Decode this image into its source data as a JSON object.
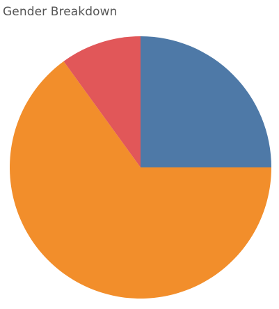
{
  "chart_data": {
    "type": "pie",
    "title": "Gender Breakdown",
    "slices": [
      {
        "value": 0.25,
        "color": "#4e79a7"
      },
      {
        "value": 0.65,
        "color": "#f28e2b"
      },
      {
        "value": 0.1,
        "color": "#e15759"
      }
    ],
    "start_angle_deg": 0,
    "direction": "clockwise",
    "legend": "none"
  }
}
